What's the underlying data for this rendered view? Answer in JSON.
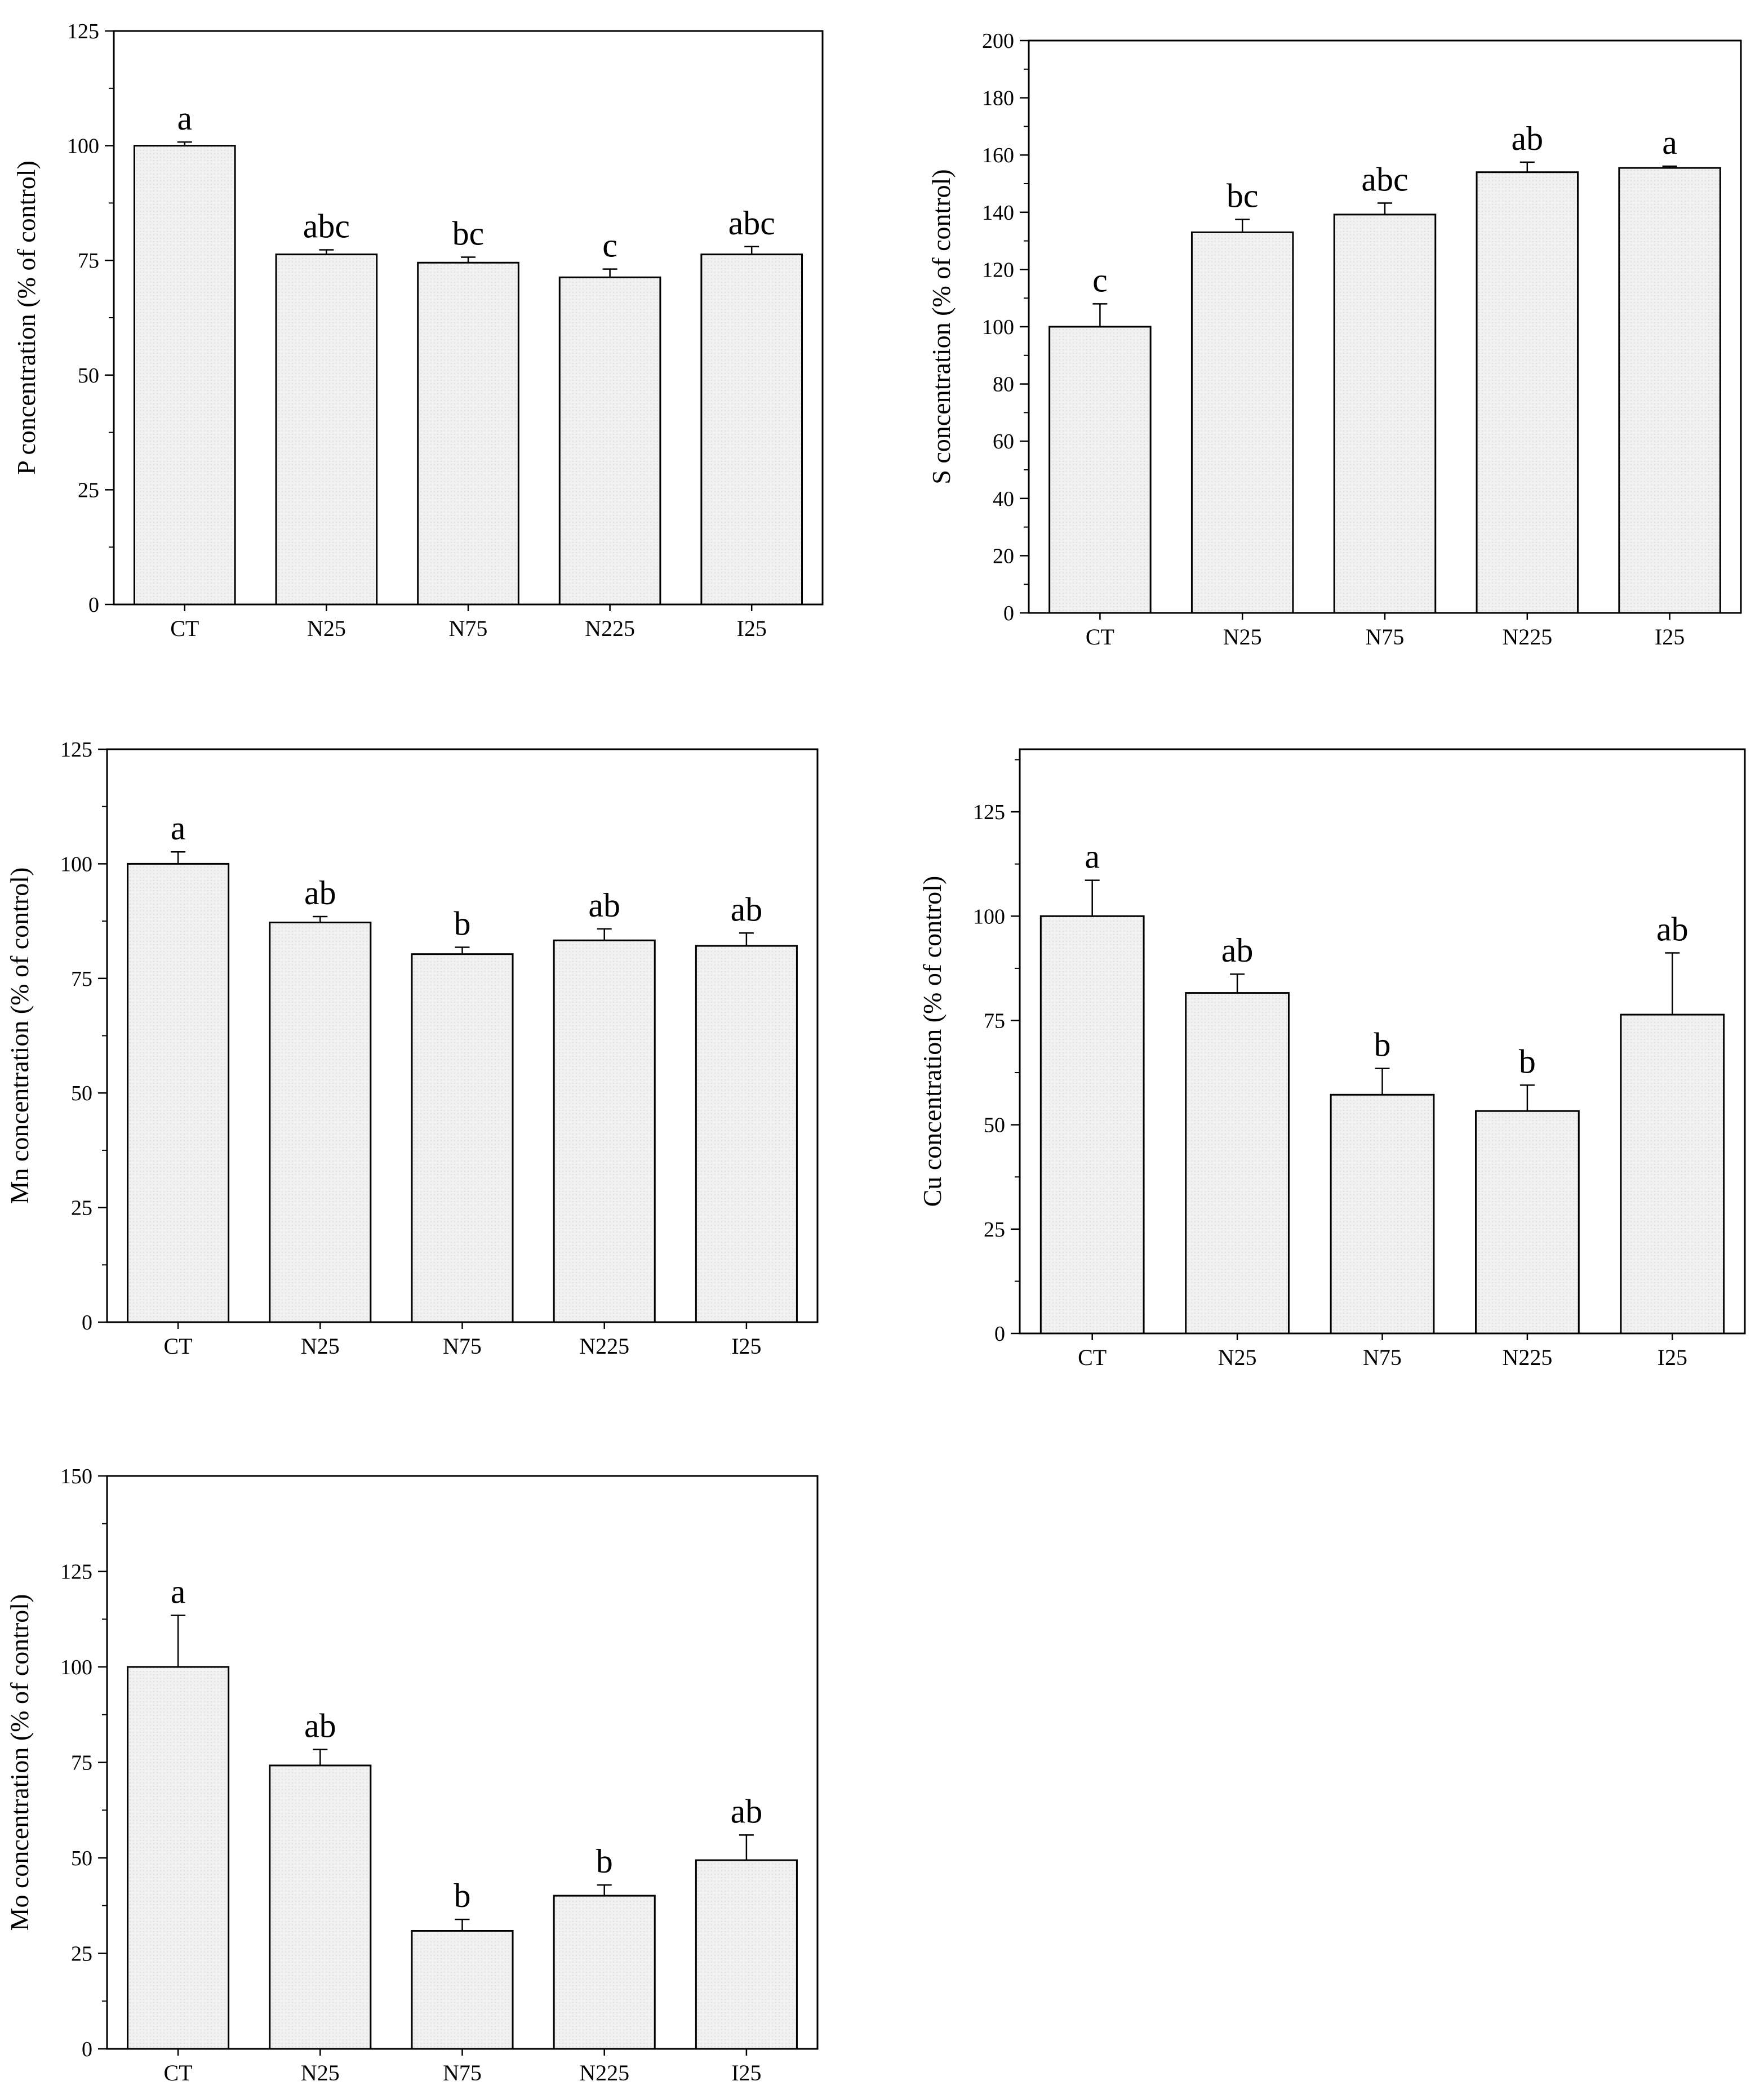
{
  "chart_data": [
    {
      "type": "bar",
      "ylabel": "P concentration (% of control)",
      "xlabel": "",
      "categories": [
        "CT",
        "N25",
        "N75",
        "N225",
        "I25"
      ],
      "values": [
        100,
        76.3,
        74.5,
        71.3,
        76.3
      ],
      "errors": [
        0.8,
        1.0,
        1.2,
        1.8,
        1.7
      ],
      "letters": [
        "a",
        "abc",
        "bc",
        "c",
        "abc"
      ],
      "ylim": [
        0,
        125
      ],
      "yticks": [
        0,
        25,
        50,
        75,
        100,
        125
      ],
      "minor_step": 12.5
    },
    {
      "type": "bar",
      "ylabel": "S concentration (% of control)",
      "xlabel": "",
      "categories": [
        "CT",
        "N25",
        "N75",
        "N225",
        "I25"
      ],
      "values": [
        100,
        133,
        139.2,
        154,
        155.5
      ],
      "errors": [
        8,
        4.5,
        4,
        3.5,
        0.6
      ],
      "letters": [
        "c",
        "bc",
        "abc",
        "ab",
        "a"
      ],
      "ylim": [
        0,
        200
      ],
      "yticks": [
        0,
        20,
        40,
        60,
        80,
        100,
        120,
        140,
        160,
        180,
        200
      ],
      "minor_step": 10
    },
    {
      "type": "bar",
      "ylabel": "Mn concentration (% of control)",
      "xlabel": "",
      "categories": [
        "CT",
        "N25",
        "N75",
        "N225",
        "I25"
      ],
      "values": [
        100,
        87.2,
        80.3,
        83.3,
        82.1
      ],
      "errors": [
        2.6,
        1.3,
        1.5,
        2.5,
        2.8
      ],
      "letters": [
        "a",
        "ab",
        "b",
        "ab",
        "ab"
      ],
      "ylim": [
        0,
        125
      ],
      "yticks": [
        0,
        25,
        50,
        75,
        100,
        125
      ],
      "minor_step": 12.5
    },
    {
      "type": "bar",
      "ylabel": "Cu concentration (% of control)",
      "xlabel": "",
      "categories": [
        "CT",
        "N25",
        "N75",
        "N225",
        "I25"
      ],
      "values": [
        100,
        81.6,
        57.2,
        53.3,
        76.4
      ],
      "errors": [
        8.6,
        4.5,
        6.3,
        6.2,
        14.8
      ],
      "letters": [
        "a",
        "ab",
        "b",
        "b",
        "ab"
      ],
      "ylim": [
        0,
        140
      ],
      "yticks": [
        0,
        25,
        50,
        75,
        100,
        125
      ],
      "minor_step": 12.5
    },
    {
      "type": "bar",
      "ylabel": "Mo concentration (% of control)",
      "xlabel": "",
      "categories": [
        "CT",
        "N25",
        "N75",
        "N225",
        "I25"
      ],
      "values": [
        100,
        74.2,
        30.9,
        40.1,
        49.4
      ],
      "errors": [
        13.5,
        4.2,
        3.0,
        2.8,
        6.6
      ],
      "letters": [
        "a",
        "ab",
        "b",
        "b",
        "ab"
      ],
      "ylim": [
        0,
        150
      ],
      "yticks": [
        0,
        25,
        50,
        75,
        100,
        125,
        150
      ],
      "minor_step": 12.5
    }
  ],
  "style": {
    "bar_fill": "#f1f1f1",
    "bar_stroke": "#000000",
    "axis_color": "#000000"
  }
}
